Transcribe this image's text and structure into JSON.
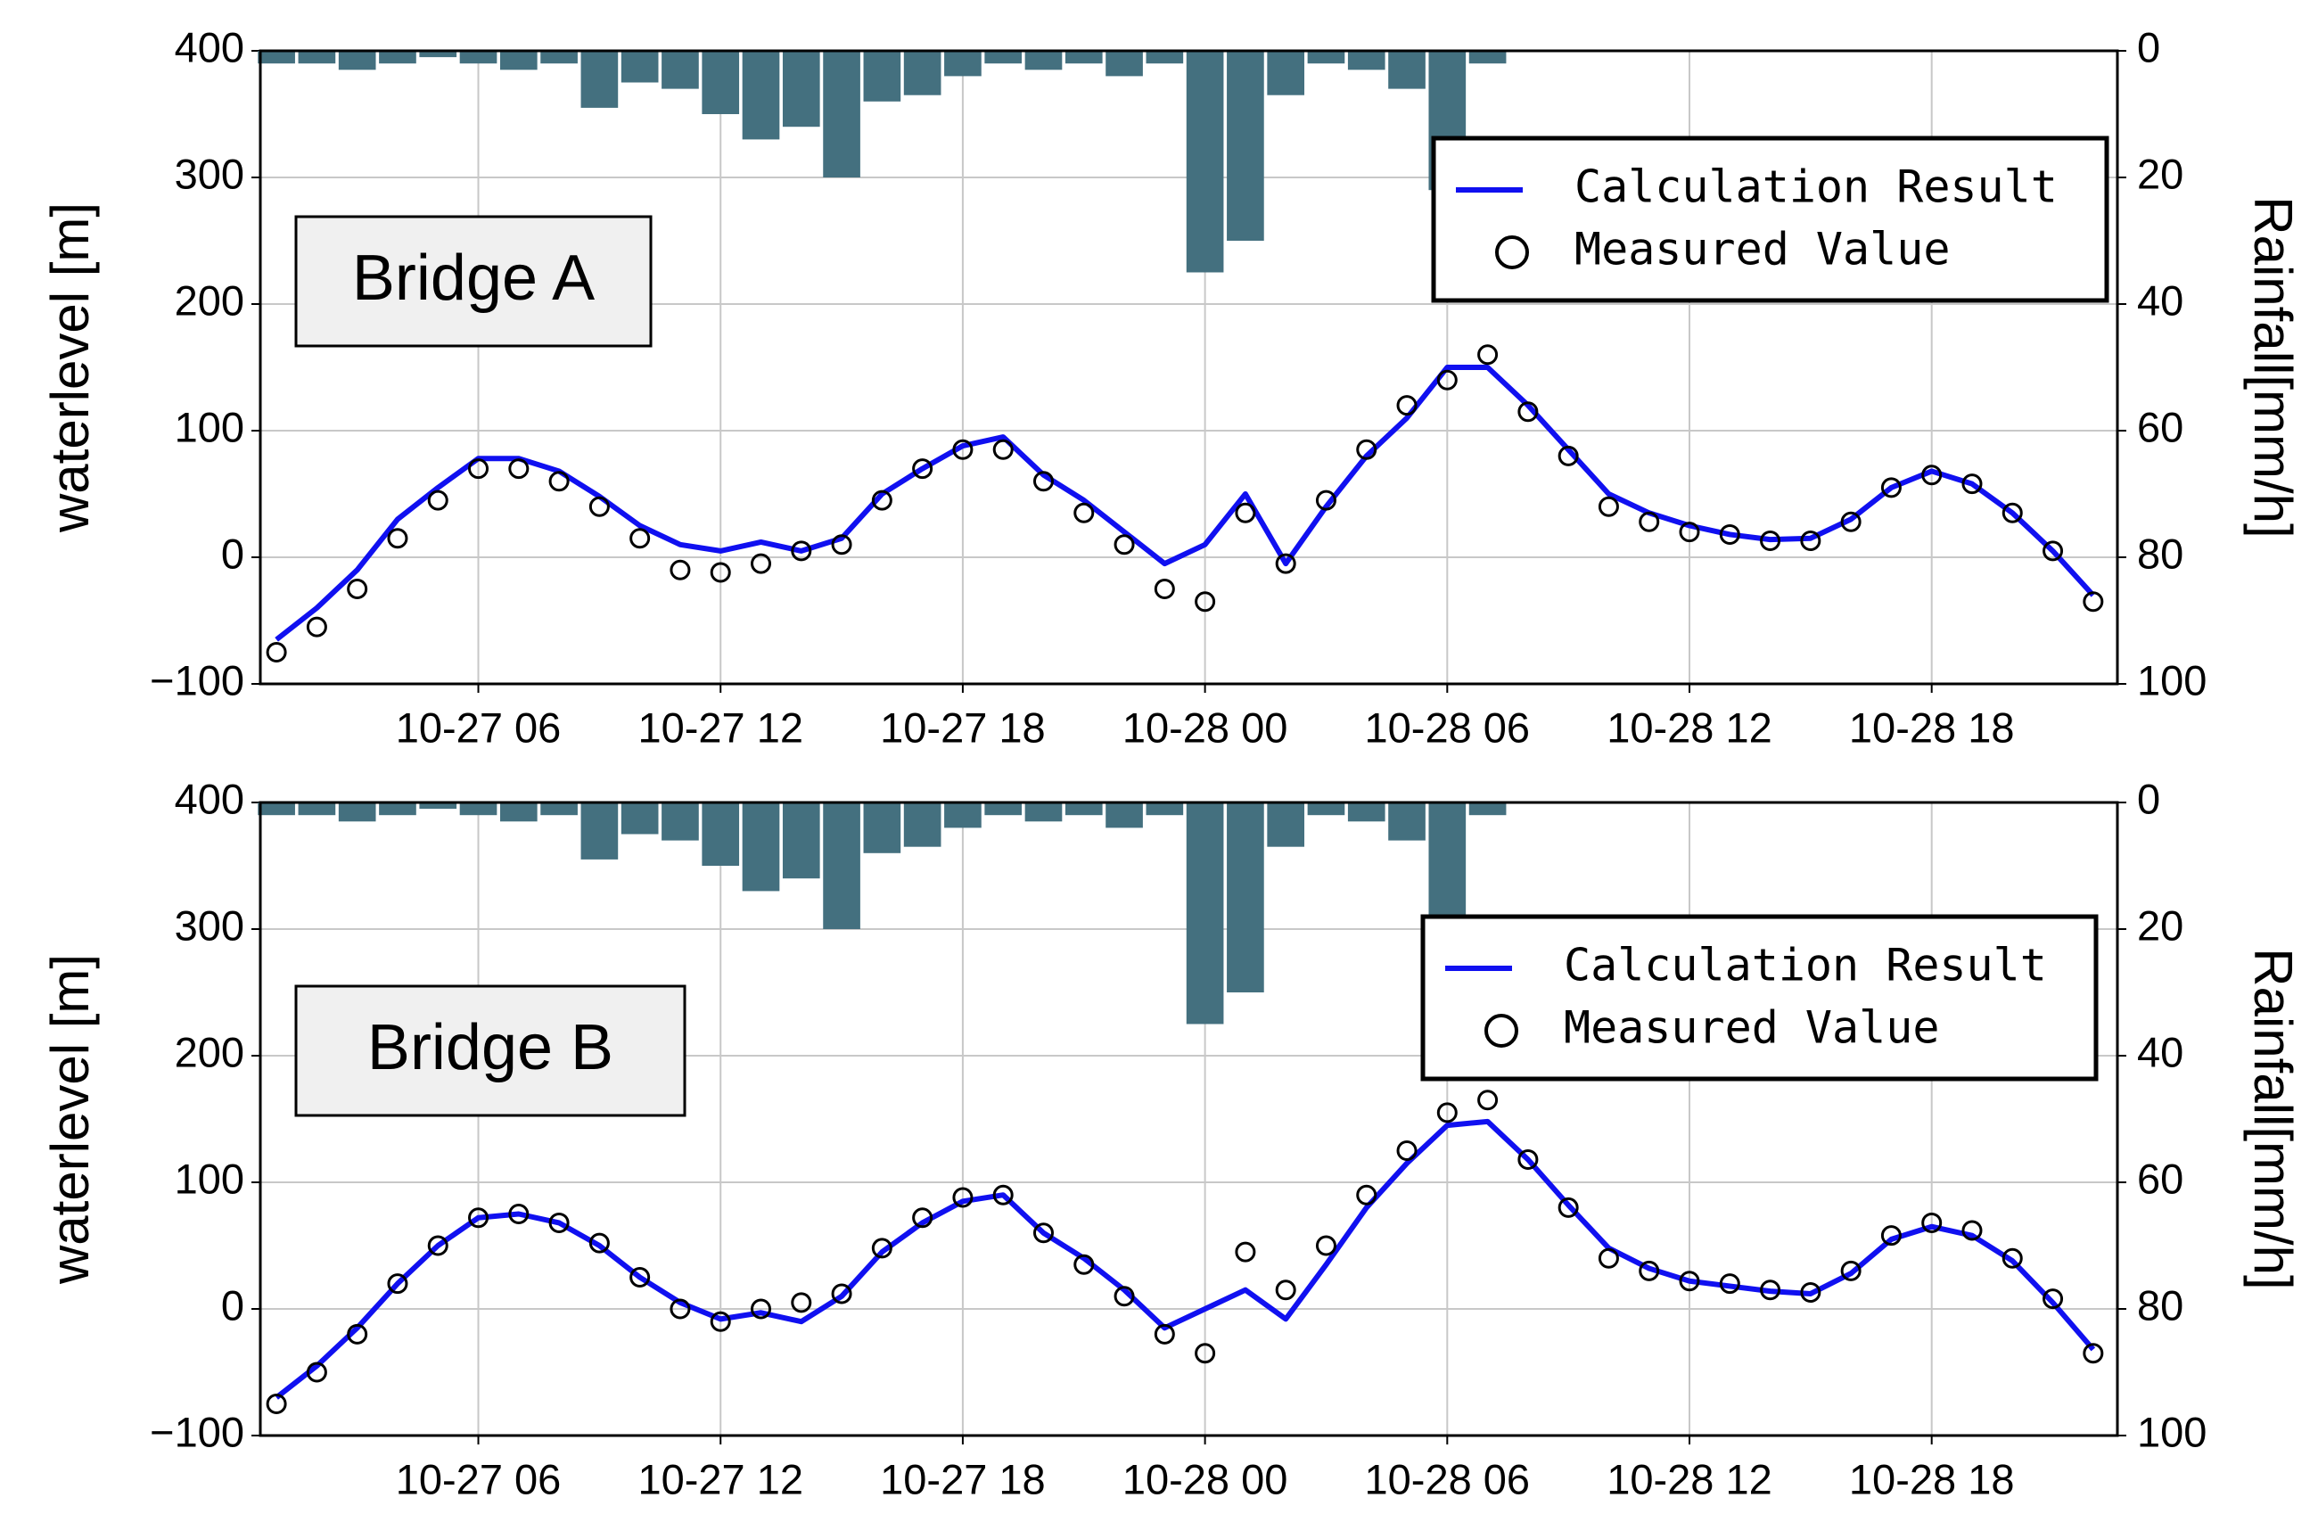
{
  "chart_data": [
    {
      "type": "line",
      "annotation": "Bridge A",
      "ylabel": "waterlevel [m]",
      "y2label": "Rainfall[mm/h]",
      "legend": "upper right",
      "grid": true,
      "x": [
        1,
        2,
        3,
        4,
        5,
        6,
        7,
        8,
        9,
        10,
        11,
        12,
        13,
        14,
        15,
        16,
        17,
        18,
        19,
        20,
        21,
        22,
        23,
        24,
        25,
        26,
        27,
        28,
        29,
        30,
        31,
        32,
        33,
        34,
        35,
        36,
        37,
        38,
        39,
        40,
        41,
        42,
        43,
        44,
        45,
        46
      ],
      "xlim": [
        0.6,
        46.6
      ],
      "xticks": [
        {
          "value": 6,
          "label": "10-27 06"
        },
        {
          "value": 12,
          "label": "10-27 12"
        },
        {
          "value": 18,
          "label": "10-27 18"
        },
        {
          "value": 24,
          "label": "10-28 00"
        },
        {
          "value": 30,
          "label": "10-28 06"
        },
        {
          "value": 36,
          "label": "10-28 12"
        },
        {
          "value": 42,
          "label": "10-28 18"
        }
      ],
      "ylim": [
        -100,
        400
      ],
      "yticks": [
        {
          "value": -100,
          "label": "−100"
        },
        0,
        100,
        200,
        300,
        400
      ],
      "y2lim": [
        100,
        0
      ],
      "y2ticks": [
        0,
        20,
        40,
        60,
        80,
        100
      ],
      "series": [
        {
          "name": "Calculation Result",
          "color": "#1010f0",
          "style": "line",
          "values": [
            -65,
            -40,
            -10,
            30,
            55,
            78,
            78,
            68,
            48,
            25,
            10,
            5,
            12,
            5,
            15,
            50,
            70,
            88,
            95,
            65,
            45,
            20,
            -5,
            10,
            50,
            -5,
            40,
            80,
            110,
            150,
            150,
            120,
            85,
            50,
            35,
            25,
            18,
            14,
            15,
            30,
            55,
            68,
            58,
            35,
            5,
            -30
          ]
        },
        {
          "name": "Measured Value",
          "color": "#000000",
          "style": "marker",
          "values": [
            -75,
            -55,
            -25,
            15,
            45,
            70,
            70,
            60,
            40,
            15,
            -10,
            -12,
            -5,
            5,
            10,
            45,
            70,
            85,
            85,
            60,
            35,
            10,
            -25,
            -35,
            35,
            -5,
            45,
            85,
            120,
            140,
            160,
            115,
            80,
            40,
            28,
            20,
            18,
            13,
            13,
            28,
            55,
            65,
            58,
            35,
            5,
            -35
          ]
        }
      ],
      "bars": {
        "axis": "y2",
        "color": "#44707f",
        "x": [
          1,
          2,
          3,
          4,
          5,
          6,
          7,
          8,
          9,
          10,
          11,
          12,
          13,
          14,
          15,
          16,
          17,
          18,
          19,
          20,
          21,
          22,
          23,
          24,
          25,
          26,
          27,
          28,
          29,
          30,
          31
        ],
        "values": [
          2,
          2,
          3,
          2,
          1,
          2,
          3,
          2,
          9,
          5,
          6,
          10,
          14,
          12,
          20,
          8,
          7,
          4,
          2,
          3,
          2,
          4,
          2,
          35,
          30,
          7,
          2,
          3,
          6,
          22,
          2
        ]
      }
    },
    {
      "type": "line",
      "annotation": "Bridge B",
      "ylabel": "waterlevel [m]",
      "y2label": "Rainfall[mm/h]",
      "legend": "upper right",
      "grid": true,
      "x": [
        1,
        2,
        3,
        4,
        5,
        6,
        7,
        8,
        9,
        10,
        11,
        12,
        13,
        14,
        15,
        16,
        17,
        18,
        19,
        20,
        21,
        22,
        23,
        24,
        25,
        26,
        27,
        28,
        29,
        30,
        31,
        32,
        33,
        34,
        35,
        36,
        37,
        38,
        39,
        40,
        41,
        42,
        43,
        44,
        45,
        46
      ],
      "xlim": [
        0.6,
        46.6
      ],
      "xticks": [
        {
          "value": 6,
          "label": "10-27 06"
        },
        {
          "value": 12,
          "label": "10-27 12"
        },
        {
          "value": 18,
          "label": "10-27 18"
        },
        {
          "value": 24,
          "label": "10-28 00"
        },
        {
          "value": 30,
          "label": "10-28 06"
        },
        {
          "value": 36,
          "label": "10-28 12"
        },
        {
          "value": 42,
          "label": "10-28 18"
        }
      ],
      "ylim": [
        -100,
        400
      ],
      "yticks": [
        {
          "value": -100,
          "label": "−100"
        },
        0,
        100,
        200,
        300,
        400
      ],
      "y2lim": [
        100,
        0
      ],
      "y2ticks": [
        0,
        20,
        40,
        60,
        80,
        100
      ],
      "series": [
        {
          "name": "Calculation Result",
          "color": "#1010f0",
          "style": "line",
          "values": [
            -70,
            -45,
            -15,
            20,
            50,
            72,
            75,
            68,
            50,
            25,
            5,
            -8,
            -3,
            -10,
            10,
            45,
            68,
            85,
            90,
            60,
            40,
            15,
            -15,
            0,
            15,
            -8,
            35,
            80,
            115,
            145,
            148,
            118,
            82,
            48,
            32,
            22,
            18,
            14,
            12,
            28,
            55,
            65,
            58,
            38,
            5,
            -32
          ]
        },
        {
          "name": "Measured Value",
          "color": "#000000",
          "style": "marker",
          "values": [
            -75,
            -50,
            -20,
            20,
            50,
            72,
            75,
            68,
            52,
            25,
            0,
            -10,
            0,
            5,
            12,
            48,
            72,
            88,
            90,
            60,
            35,
            10,
            -20,
            -35,
            45,
            15,
            50,
            90,
            125,
            155,
            165,
            118,
            80,
            40,
            30,
            22,
            20,
            15,
            13,
            30,
            58,
            68,
            62,
            40,
            8,
            -35
          ]
        }
      ],
      "bars": {
        "axis": "y2",
        "color": "#44707f",
        "x": [
          1,
          2,
          3,
          4,
          5,
          6,
          7,
          8,
          9,
          10,
          11,
          12,
          13,
          14,
          15,
          16,
          17,
          18,
          19,
          20,
          21,
          22,
          23,
          24,
          25,
          26,
          27,
          28,
          29,
          30,
          31
        ],
        "values": [
          2,
          2,
          3,
          2,
          1,
          2,
          3,
          2,
          9,
          5,
          6,
          10,
          14,
          12,
          20,
          8,
          7,
          4,
          2,
          3,
          2,
          4,
          2,
          35,
          30,
          7,
          2,
          3,
          6,
          22,
          2
        ]
      }
    }
  ]
}
